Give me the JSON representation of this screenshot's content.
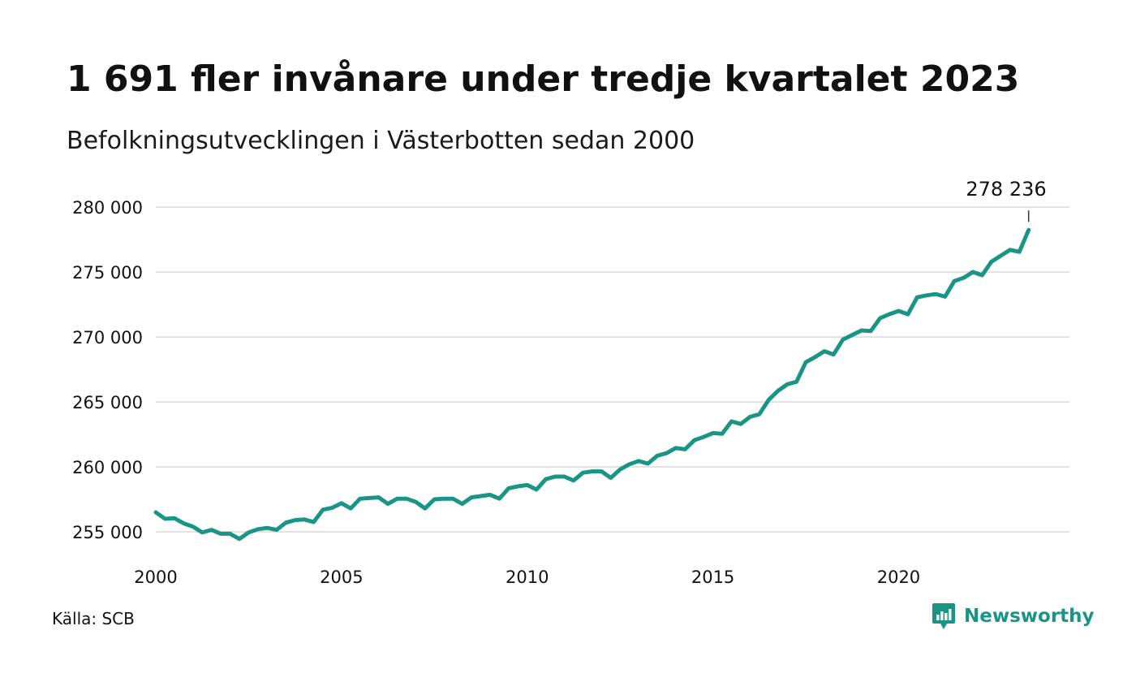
{
  "header": {
    "title": "1 691 fler invånare under tredje kvartalet 2023",
    "subtitle": "Befolkningsutvecklingen i Västerbotten sedan 2000"
  },
  "footer": {
    "source": "Källa: SCB",
    "brand": "Newsworthy",
    "brand_icon": "newsworthy-chart-bubble-icon"
  },
  "colors": {
    "line": "#1a9585",
    "grid": "#e2e2e2",
    "text": "#111111"
  },
  "chart_data": {
    "type": "line",
    "title": "1 691 fler invånare under tredje kvartalet 2023",
    "subtitle": "Befolkningsutvecklingen i Västerbotten sedan 2000",
    "xlabel": "",
    "ylabel": "",
    "x_ticks": [
      2000,
      2005,
      2010,
      2015,
      2020
    ],
    "y_ticks": [
      255000,
      260000,
      265000,
      270000,
      275000,
      280000
    ],
    "y_tick_labels": [
      "255 000",
      "260 000",
      "265 000",
      "270 000",
      "275 000",
      "280 000"
    ],
    "x_tick_labels": [
      "2000",
      "2005",
      "2010",
      "2015",
      "2020"
    ],
    "xlim": [
      2000,
      2024.6
    ],
    "ylim": [
      254000,
      280000
    ],
    "grid": true,
    "last_label": "278 236",
    "series": [
      {
        "x": [
          2000.0,
          2000.25,
          2000.5,
          2000.75,
          2001.0,
          2001.25,
          2001.5,
          2001.75,
          2002.0,
          2002.25,
          2002.5,
          2002.75,
          2003.0,
          2003.25,
          2003.5,
          2003.75,
          2004.0,
          2004.25,
          2004.5,
          2004.75,
          2005.0,
          2005.25,
          2005.5,
          2005.75,
          2006.0,
          2006.25,
          2006.5,
          2006.75,
          2007.0,
          2007.25,
          2007.5,
          2007.75,
          2008.0,
          2008.25,
          2008.5,
          2008.75,
          2009.0,
          2009.25,
          2009.5,
          2009.75,
          2010.0,
          2010.25,
          2010.5,
          2010.75,
          2011.0,
          2011.25,
          2011.5,
          2011.75,
          2012.0,
          2012.25,
          2012.5,
          2012.75,
          2013.0,
          2013.25,
          2013.5,
          2013.75,
          2014.0,
          2014.25,
          2014.5,
          2014.75,
          2015.0,
          2015.25,
          2015.5,
          2015.75,
          2016.0,
          2016.25,
          2016.5,
          2016.75,
          2017.0,
          2017.25,
          2017.5,
          2017.75,
          2018.0,
          2018.25,
          2018.5,
          2018.75,
          2019.0,
          2019.25,
          2019.5,
          2019.75,
          2020.0,
          2020.25,
          2020.5,
          2020.75,
          2021.0,
          2021.25,
          2021.5,
          2021.75,
          2022.0,
          2022.25,
          2022.5,
          2022.75,
          2023.0,
          2023.25,
          2023.5
        ],
        "values": [
          256500,
          256000,
          256050,
          255650,
          255400,
          254950,
          255150,
          254850,
          254850,
          254450,
          254950,
          255200,
          255300,
          255150,
          255700,
          255900,
          255950,
          255750,
          256700,
          256850,
          257200,
          256800,
          257550,
          257600,
          257650,
          257150,
          257550,
          257550,
          257300,
          256800,
          257500,
          257550,
          257550,
          257150,
          257650,
          257750,
          257850,
          257550,
          258350,
          258500,
          258600,
          258250,
          259050,
          259250,
          259250,
          258950,
          259550,
          259650,
          259650,
          259150,
          259800,
          260200,
          260450,
          260250,
          260850,
          261050,
          261450,
          261350,
          262050,
          262300,
          262600,
          262550,
          263500,
          263300,
          263850,
          264050,
          265150,
          265850,
          266350,
          266550,
          268050,
          268450,
          268900,
          268650,
          269800,
          270150,
          270500,
          270450,
          271450,
          271750,
          272000,
          271750,
          273050,
          273200,
          273300,
          273100,
          274300,
          274550,
          275000,
          274750,
          275800,
          276250,
          276700,
          276550,
          278236
        ]
      }
    ]
  }
}
